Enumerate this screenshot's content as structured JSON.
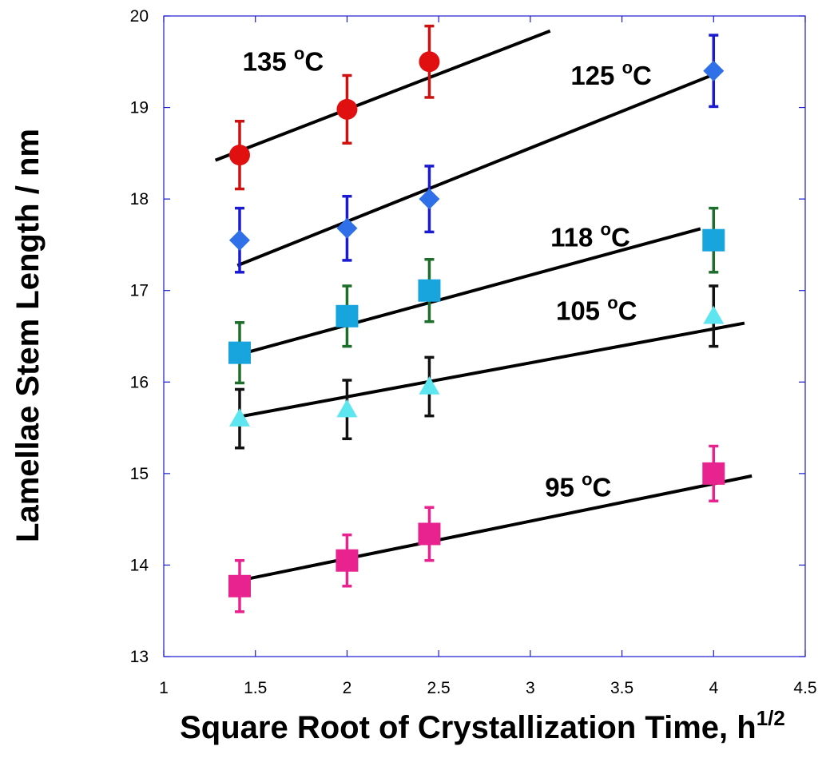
{
  "chart_data": {
    "type": "scatter",
    "xlabel": "Square Root of Crystallization Time, h",
    "xlabel_sup": "1/2",
    "ylabel": "Lamellae Stem Length / nm",
    "xlim": [
      1,
      4.5
    ],
    "ylim": [
      13,
      20
    ],
    "xticks": [
      "1",
      "1.5",
      "2",
      "2.5",
      "3",
      "3.5",
      "4",
      "4.5"
    ],
    "yticks": [
      "13",
      "14",
      "15",
      "16",
      "17",
      "18",
      "19",
      "20"
    ],
    "grid": false,
    "series": [
      {
        "name": "135",
        "unit": "C",
        "deg": "o",
        "marker": "circle",
        "color": "#e01010",
        "error_color": "#cc1111",
        "x": [
          1.414,
          2.0,
          2.449
        ],
        "y": [
          18.48,
          18.98,
          19.5
        ],
        "err": [
          0.37,
          0.37,
          0.39
        ],
        "fit": [
          [
            1.29,
            18.43
          ],
          [
            3.1,
            19.83
          ]
        ],
        "label_at": [
          1.43,
          19.4
        ]
      },
      {
        "name": "125",
        "unit": "C",
        "deg": "o",
        "marker": "diamond",
        "color": "#2f6fe8",
        "error_color": "#1a1ad0",
        "x": [
          1.414,
          2.0,
          2.449,
          4.0
        ],
        "y": [
          17.55,
          17.68,
          18.0,
          19.4
        ],
        "err": [
          0.35,
          0.35,
          0.36,
          0.39
        ],
        "fit": [
          [
            1.41,
            17.28
          ],
          [
            4.0,
            19.36
          ]
        ],
        "label_at": [
          3.22,
          19.25
        ]
      },
      {
        "name": "118",
        "unit": "C",
        "deg": "o",
        "marker": "square",
        "color": "#18a4dd",
        "error_color": "#1d6e2a",
        "x": [
          1.414,
          2.0,
          2.449,
          4.0
        ],
        "y": [
          16.32,
          16.72,
          17.0,
          17.55
        ],
        "err": [
          0.33,
          0.33,
          0.34,
          0.35
        ],
        "fit": [
          [
            1.41,
            16.3
          ],
          [
            3.92,
            17.67
          ]
        ],
        "label_at": [
          3.11,
          17.48
        ]
      },
      {
        "name": "105",
        "unit": "C",
        "deg": "o",
        "marker": "triangle",
        "color": "#5ee6f0",
        "error_color": "#111111",
        "x": [
          1.414,
          2.0,
          2.449,
          4.0
        ],
        "y": [
          15.6,
          15.7,
          15.95,
          16.72
        ],
        "err": [
          0.32,
          0.32,
          0.32,
          0.33
        ],
        "fit": [
          [
            1.41,
            15.62
          ],
          [
            4.16,
            16.64
          ]
        ],
        "label_at": [
          3.14,
          16.68
        ]
      },
      {
        "name": "95",
        "unit": "C",
        "deg": "o",
        "marker": "square",
        "color": "#e8238f",
        "error_color": "#e8238f",
        "x": [
          1.414,
          2.0,
          2.449,
          4.0
        ],
        "y": [
          13.77,
          14.05,
          14.34,
          15.0
        ],
        "err": [
          0.28,
          0.28,
          0.29,
          0.3
        ],
        "fit": [
          [
            1.41,
            13.83
          ],
          [
            4.2,
            14.97
          ]
        ],
        "label_at": [
          3.08,
          14.75
        ]
      }
    ]
  }
}
